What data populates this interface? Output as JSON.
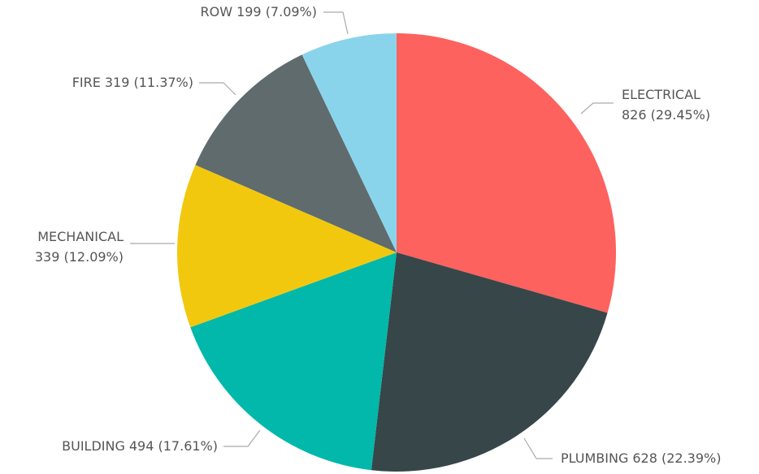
{
  "chart_data": {
    "type": "pie",
    "categories": [
      "ELECTRICAL",
      "PLUMBING",
      "BUILDING",
      "MECHANICAL",
      "FIRE",
      "ROW"
    ],
    "values": [
      826,
      628,
      494,
      339,
      319,
      199
    ],
    "value_labels": [
      "826 (29.45%)",
      "628 (22.39%)",
      "494 (17.61%)",
      "339 (12.09%)",
      "319 (11.37%)",
      "199 (7.09%)"
    ],
    "colors": [
      "#fd625e",
      "#374649",
      "#01b8aa",
      "#f2c80f",
      "#5f6b6d",
      "#8ad4eb"
    ]
  }
}
